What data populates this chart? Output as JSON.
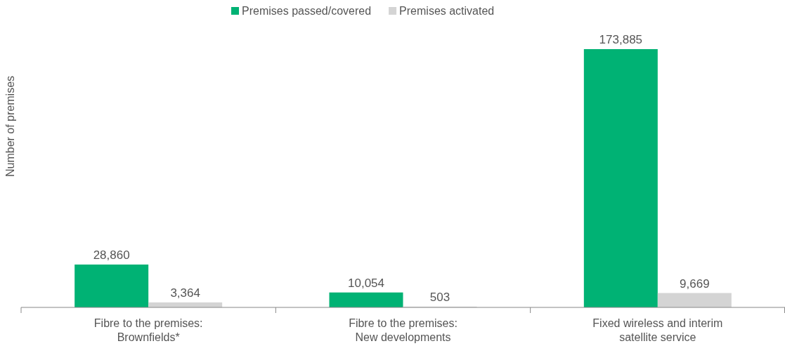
{
  "chart_data": {
    "type": "bar",
    "ylabel": "Number of premises",
    "categories": [
      "Fibre to the premises:\nBrownfields*",
      "Fibre to the premises:\nNew developments",
      "Fixed wireless and interim\nsatellite service"
    ],
    "series": [
      {
        "name": "Premises passed/covered",
        "color": "#00b274",
        "values": [
          28860,
          10054,
          173885
        ],
        "value_labels": [
          "28,860",
          "10,054",
          "173,885"
        ]
      },
      {
        "name": "Premises activated",
        "color": "#d4d4d4",
        "values": [
          3364,
          503,
          9669
        ],
        "value_labels": [
          "3,364",
          "503",
          "9,669"
        ]
      }
    ],
    "legend": "top"
  }
}
